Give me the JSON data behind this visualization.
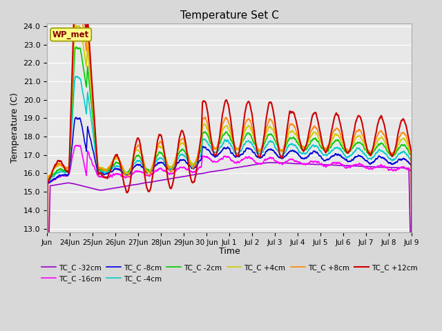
{
  "title": "Temperature Set C",
  "xlabel": "Time",
  "ylabel": "Temperature (C)",
  "ylim": [
    13.0,
    24.0
  ],
  "yticks": [
    13.0,
    14.0,
    15.0,
    16.0,
    17.0,
    18.0,
    19.0,
    20.0,
    21.0,
    22.0,
    23.0,
    24.0
  ],
  "xtick_labels": [
    "Jun",
    "24Jun",
    "25Jun",
    "26Jun",
    "27Jun",
    "28Jun",
    "29Jun",
    "30 Jun",
    "Jul 1",
    "Jul 2",
    "Jul 3",
    "Jul 4",
    "Jul 5",
    "Jul 6",
    "Jul 7",
    "Jul 8",
    "Jul 9"
  ],
  "series_order": [
    "TC_C -32cm",
    "TC_C -16cm",
    "TC_C -8cm",
    "TC_C -4cm",
    "TC_C -2cm",
    "TC_C +4cm",
    "TC_C +8cm",
    "TC_C +12cm"
  ],
  "series": {
    "TC_C -32cm": {
      "color": "#9900cc",
      "lw": 1.2
    },
    "TC_C -16cm": {
      "color": "#ff00ff",
      "lw": 1.2
    },
    "TC_C -8cm": {
      "color": "#0000dd",
      "lw": 1.2
    },
    "TC_C -4cm": {
      "color": "#00cccc",
      "lw": 1.2
    },
    "TC_C -2cm": {
      "color": "#00cc00",
      "lw": 1.2
    },
    "TC_C +4cm": {
      "color": "#cccc00",
      "lw": 1.2
    },
    "TC_C +8cm": {
      "color": "#ff8800",
      "lw": 1.2
    },
    "TC_C +12cm": {
      "color": "#cc0000",
      "lw": 1.5
    }
  },
  "wp_met_box_color": "#ffff88",
  "wp_met_text_color": "#880000",
  "background_color": "#e8e8e8",
  "fig_bg_color": "#d8d8d8"
}
